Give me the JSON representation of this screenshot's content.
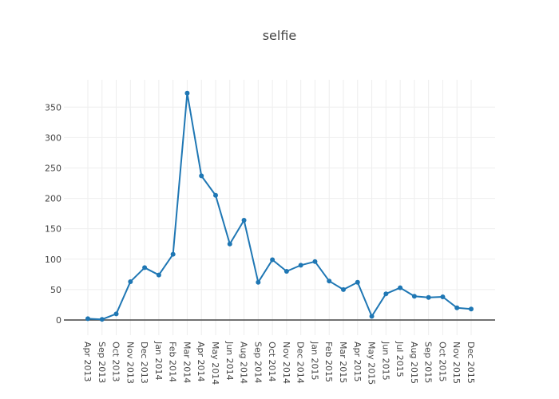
{
  "chart_data": {
    "type": "line",
    "title": "selfie",
    "xlabel": "",
    "ylabel": "",
    "categories": [
      "Apr 2013",
      "Sep 2013",
      "Oct 2013",
      "Nov 2013",
      "Dec 2013",
      "Jan 2014",
      "Feb 2014",
      "Mar 2014",
      "Apr 2014",
      "May 2014",
      "Jun 2014",
      "Aug 2014",
      "Sep 2014",
      "Oct 2014",
      "Nov 2014",
      "Dec 2014",
      "Jan 2015",
      "Feb 2015",
      "Mar 2015",
      "Apr 2015",
      "May 2015",
      "Jun 2015",
      "Jul 2015",
      "Aug 2015",
      "Sep 2015",
      "Oct 2015",
      "Nov 2015",
      "Dec 2015"
    ],
    "values": [
      2,
      1,
      10,
      63,
      86,
      74,
      108,
      373,
      237,
      205,
      125,
      164,
      62,
      99,
      80,
      90,
      96,
      64,
      50,
      62,
      6,
      43,
      53,
      39,
      37,
      38,
      20,
      18
    ],
    "ylim": [
      -25,
      395
    ],
    "yticks": [
      0,
      50,
      100,
      150,
      200,
      250,
      300,
      350
    ],
    "yticklabels": [
      "0",
      "50",
      "100",
      "150",
      "200",
      "250",
      "300",
      "350"
    ],
    "grid": true,
    "colors": {
      "line": "#1f77b4",
      "grid": "#eeeeee",
      "zeroline": "#444444",
      "text": "#444444"
    }
  }
}
